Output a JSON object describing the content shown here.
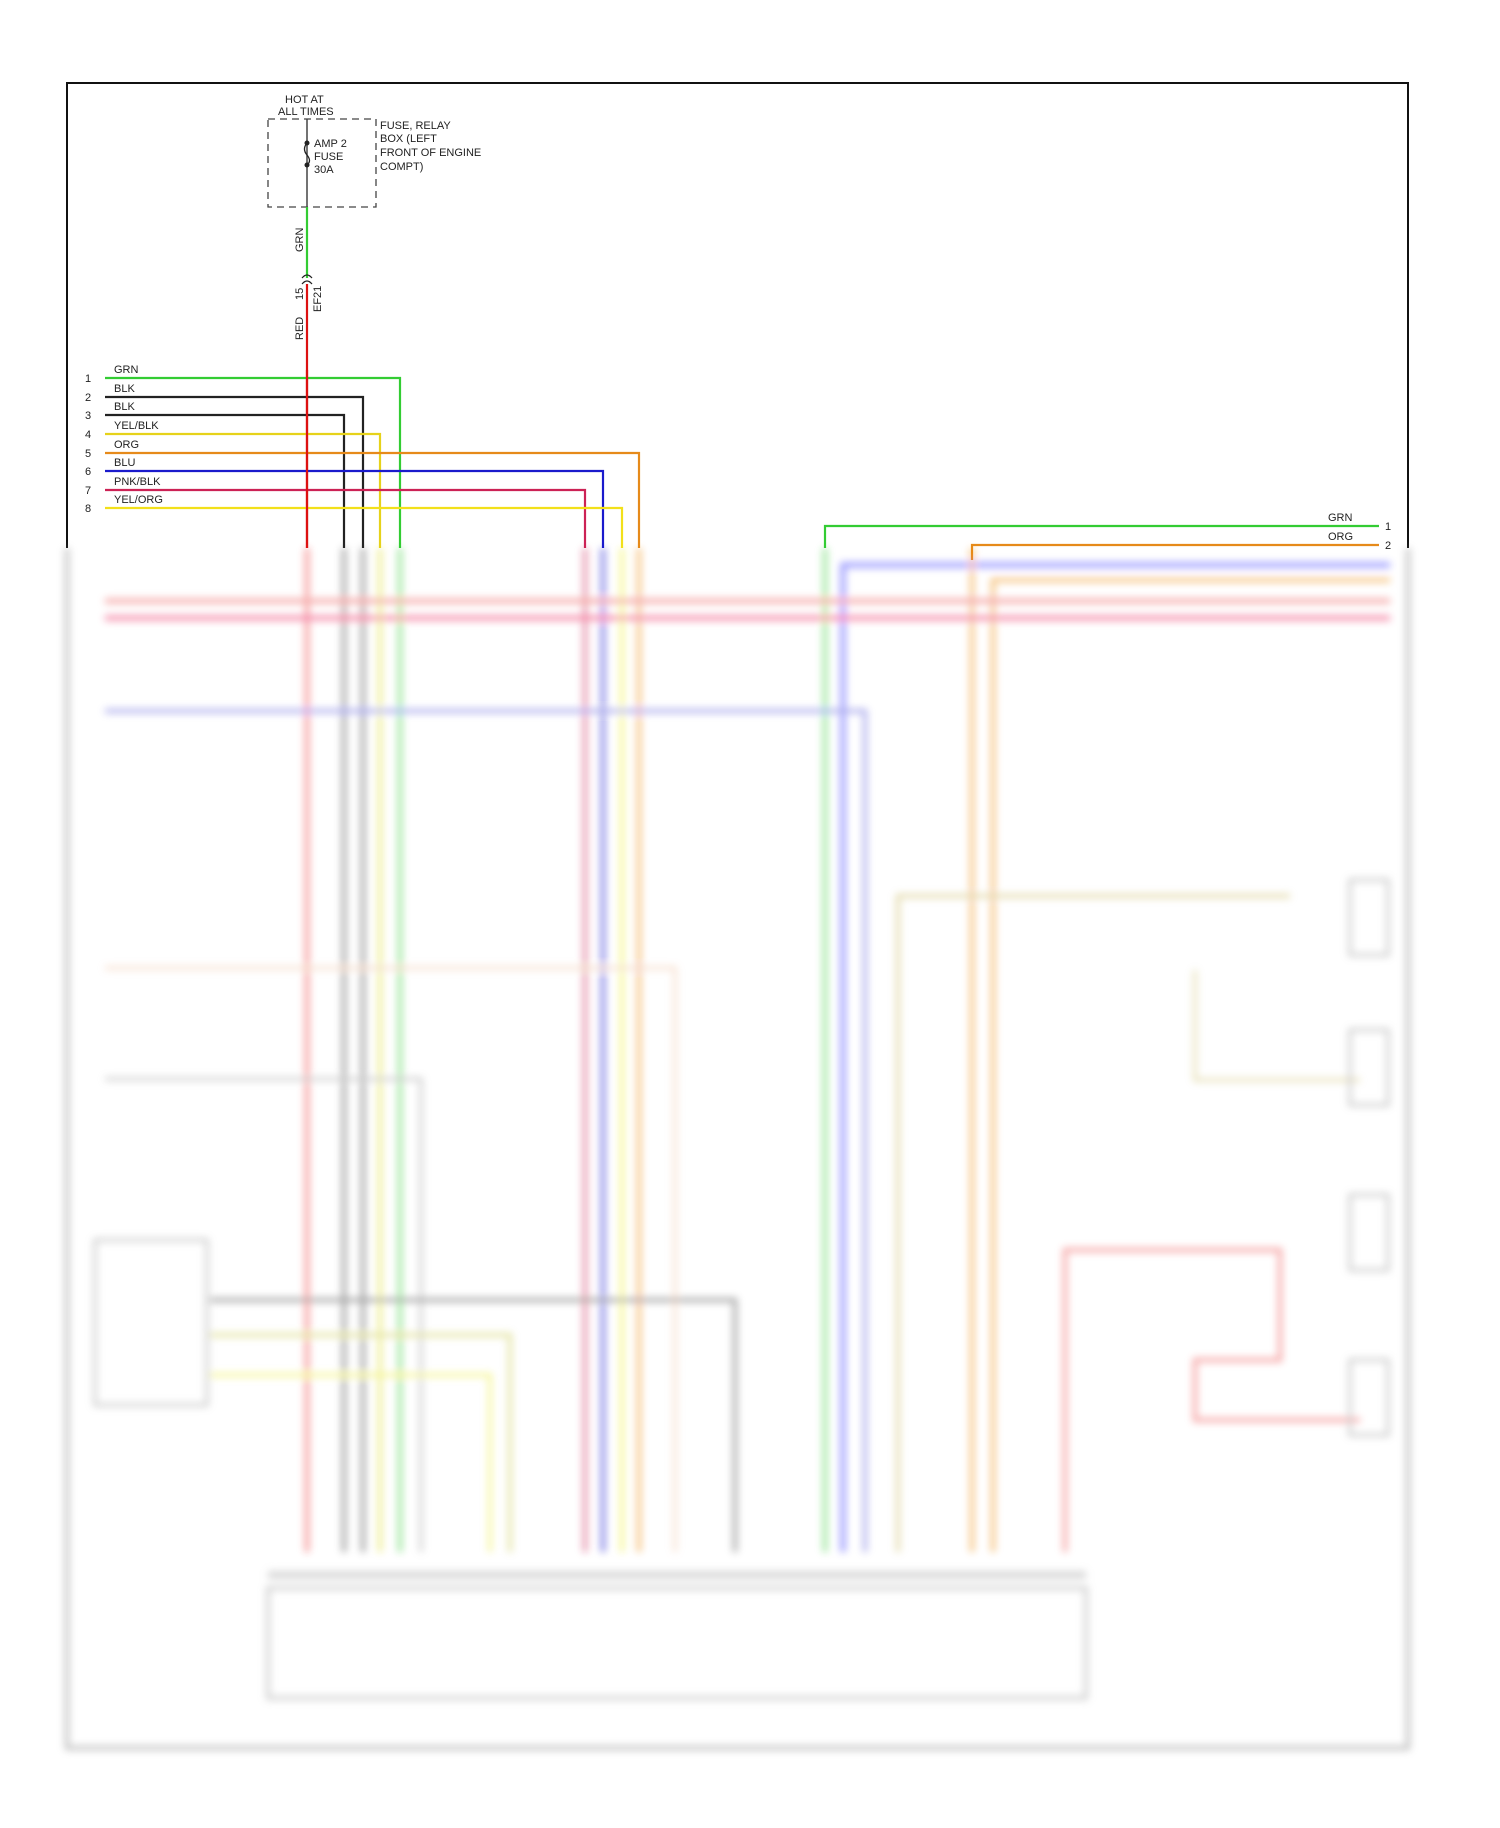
{
  "diagram": {
    "power_source": {
      "line1": "HOT AT",
      "line2": "ALL TIMES"
    },
    "fuse": {
      "line1": "AMP 2",
      "line2": "FUSE",
      "line3": "30A"
    },
    "fuse_box": {
      "line1": "FUSE, RELAY",
      "line2": "BOX (LEFT",
      "line3": "FRONT OF ENGINE",
      "line4": "COMPT)"
    },
    "feed_wire_upper": "GRN",
    "feed_wire_lower": "RED",
    "connector": {
      "pin": "15",
      "name": "EF21"
    },
    "left_connector": [
      {
        "pin": "1",
        "color_name": "GRN",
        "color": "#33cc33"
      },
      {
        "pin": "2",
        "color_name": "BLK",
        "color": "#222222"
      },
      {
        "pin": "3",
        "color_name": "BLK",
        "color": "#222222"
      },
      {
        "pin": "4",
        "color_name": "YEL/BLK",
        "color": "#e6d21a"
      },
      {
        "pin": "5",
        "color_name": "ORG",
        "color": "#e68a1a"
      },
      {
        "pin": "6",
        "color_name": "BLU",
        "color": "#1a1acc"
      },
      {
        "pin": "7",
        "color_name": "PNK/BLK",
        "color": "#cc2255"
      },
      {
        "pin": "8",
        "color_name": "YEL/ORG",
        "color": "#f2e01a"
      }
    ],
    "right_connector": [
      {
        "pin": "1",
        "color_name": "GRN",
        "color": "#33cc33"
      },
      {
        "pin": "2",
        "color_name": "ORG",
        "color": "#e68a1a"
      }
    ],
    "colors": {
      "red": "#dd1111",
      "green": "#33cc33",
      "border": "#111111"
    }
  }
}
